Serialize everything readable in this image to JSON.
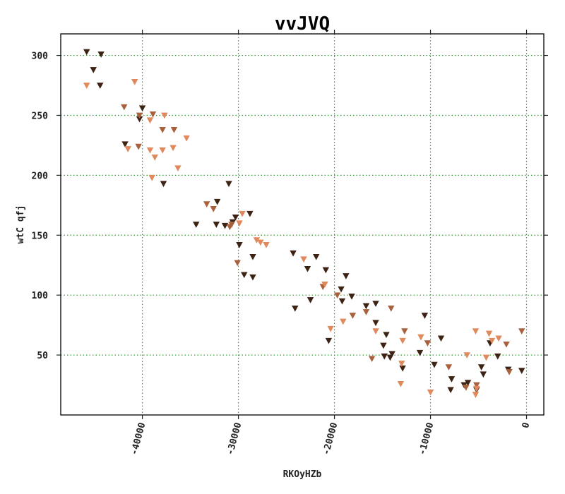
{
  "chart_data": {
    "type": "scatter",
    "title": "vvJVQ",
    "xlabel": "RKOyHZb",
    "ylabel": "wtC qfj",
    "xlim": [
      -48500,
      1800
    ],
    "ylim": [
      0,
      318
    ],
    "xticks": [
      -40000,
      -30000,
      -20000,
      -10000,
      0
    ],
    "xtick_labels": [
      "-40000",
      "-30000",
      "-20000",
      "-10000",
      "0"
    ],
    "yticks": [
      50,
      100,
      150,
      200,
      250,
      300
    ],
    "ytick_labels": [
      "50",
      "100",
      "150",
      "200",
      "250",
      "300"
    ],
    "grid": true,
    "marker": "triangle-down",
    "series": [
      {
        "color": "#3d2314",
        "points": [
          [
            -45800,
            303
          ],
          [
            -44300,
            301
          ],
          [
            -45100,
            288
          ],
          [
            -44400,
            275
          ],
          [
            -40000,
            256
          ],
          [
            -40300,
            247
          ],
          [
            -41800,
            226
          ],
          [
            -37800,
            193
          ],
          [
            -34400,
            159
          ],
          [
            -32200,
            178
          ],
          [
            -32300,
            159
          ],
          [
            -31400,
            158
          ],
          [
            -31000,
            193
          ],
          [
            -30600,
            161
          ],
          [
            -30300,
            165
          ],
          [
            -28800,
            168
          ],
          [
            -29900,
            142
          ],
          [
            -28500,
            132
          ],
          [
            -29400,
            117
          ],
          [
            -28500,
            115
          ],
          [
            -24300,
            135
          ],
          [
            -22800,
            122
          ],
          [
            -22500,
            96
          ],
          [
            -24100,
            89
          ],
          [
            -21900,
            132
          ],
          [
            -20900,
            121
          ],
          [
            -20600,
            62
          ],
          [
            -19300,
            105
          ],
          [
            -18800,
            116
          ],
          [
            -19200,
            95
          ],
          [
            -18200,
            99
          ],
          [
            -16700,
            91
          ],
          [
            -15700,
            93
          ],
          [
            -15700,
            77
          ],
          [
            -14900,
            58
          ],
          [
            -14600,
            67
          ],
          [
            -14800,
            49
          ],
          [
            -14200,
            48
          ],
          [
            -14000,
            51
          ],
          [
            -12900,
            39
          ],
          [
            -11100,
            52
          ],
          [
            -10600,
            83
          ],
          [
            -9600,
            42
          ],
          [
            -8900,
            64
          ],
          [
            -7800,
            30
          ],
          [
            -7900,
            21
          ],
          [
            -6500,
            25
          ],
          [
            -6100,
            27
          ],
          [
            -5200,
            21
          ],
          [
            -4700,
            40
          ],
          [
            -4500,
            34
          ],
          [
            -3800,
            60
          ],
          [
            -3000,
            49
          ],
          [
            -1900,
            38
          ],
          [
            -500,
            37
          ]
        ]
      },
      {
        "color": "#a8613c",
        "points": [
          [
            -41900,
            257
          ],
          [
            -40300,
            250
          ],
          [
            -38900,
            251
          ],
          [
            -37900,
            238
          ],
          [
            -36700,
            238
          ],
          [
            -40400,
            224
          ],
          [
            -33300,
            176
          ],
          [
            -32600,
            172
          ],
          [
            -30900,
            157
          ],
          [
            -30700,
            159
          ],
          [
            -30100,
            127
          ],
          [
            -21200,
            107
          ],
          [
            -19700,
            100
          ],
          [
            -18100,
            83
          ],
          [
            -16700,
            86
          ],
          [
            -14100,
            89
          ],
          [
            -16100,
            47
          ],
          [
            -12700,
            70
          ],
          [
            -10300,
            60
          ],
          [
            -8100,
            40
          ],
          [
            -6300,
            23
          ],
          [
            -5200,
            25
          ],
          [
            -2100,
            59
          ],
          [
            -1800,
            36
          ],
          [
            -500,
            70
          ]
        ]
      },
      {
        "color": "#e0895c",
        "points": [
          [
            -45800,
            275
          ],
          [
            -40800,
            278
          ],
          [
            -39200,
            246
          ],
          [
            -37700,
            250
          ],
          [
            -41500,
            222
          ],
          [
            -39200,
            221
          ],
          [
            -38700,
            215
          ],
          [
            -37900,
            221
          ],
          [
            -36800,
            223
          ],
          [
            -35400,
            231
          ],
          [
            -39000,
            198
          ],
          [
            -36300,
            206
          ],
          [
            -29600,
            168
          ],
          [
            -29900,
            160
          ],
          [
            -28100,
            146
          ],
          [
            -27700,
            144
          ],
          [
            -27100,
            142
          ],
          [
            -23200,
            130
          ],
          [
            -21000,
            109
          ],
          [
            -20400,
            72
          ],
          [
            -19100,
            78
          ],
          [
            -15700,
            70
          ],
          [
            -13000,
            43
          ],
          [
            -12900,
            62
          ],
          [
            -13100,
            26
          ],
          [
            -11000,
            65
          ],
          [
            -10000,
            19
          ],
          [
            -6200,
            50
          ],
          [
            -5300,
            70
          ],
          [
            -5300,
            17
          ],
          [
            -5200,
            22
          ],
          [
            -4200,
            48
          ],
          [
            -3900,
            68
          ],
          [
            -3600,
            62
          ],
          [
            -2900,
            64
          ]
        ]
      }
    ]
  }
}
